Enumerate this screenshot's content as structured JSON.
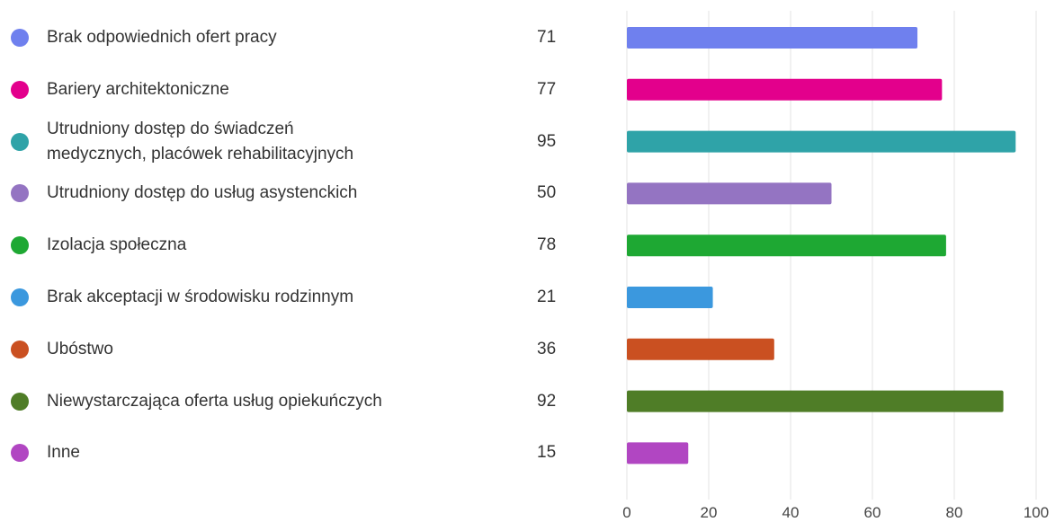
{
  "chart_data": {
    "type": "bar",
    "orientation": "horizontal",
    "categories": [
      "Brak odpowiednich ofert pracy",
      "Bariery architektoniczne",
      "Utrudniony dostęp do świadczeń\nmedycznych, placówek rehabilitacyjnych",
      "Utrudniony dostęp do usług asystenckich",
      "Izolacja społeczna",
      "Brak akceptacji w środowisku rodzinnym",
      "Ubóstwo",
      "Niewystarczająca oferta usług opiekuńczych",
      "Inne"
    ],
    "values": [
      71,
      77,
      95,
      50,
      78,
      21,
      36,
      92,
      15
    ],
    "colors": [
      "#6f80ee",
      "#e3008c",
      "#2fa3a8",
      "#9474c2",
      "#1ea833",
      "#3b98de",
      "#ca5021",
      "#4f7d27",
      "#b146c2"
    ],
    "xlim": [
      0,
      100
    ],
    "xticks": [
      0,
      20,
      40,
      60,
      80,
      100
    ],
    "grid": true
  }
}
